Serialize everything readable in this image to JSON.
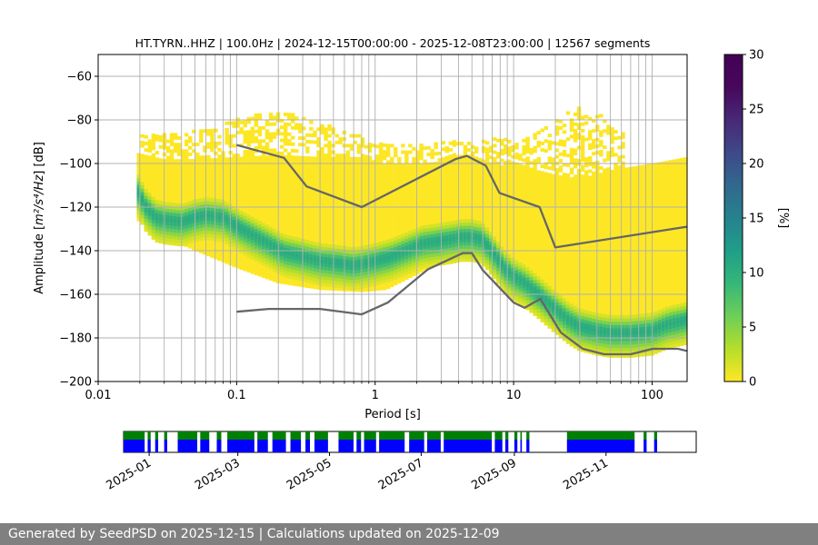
{
  "chart_data": [
    {
      "type": "heatmap",
      "title": "HT.TYRN..HHZ | 100.0Hz | 2024-12-15T00:00:00 - 2025-12-08T23:00:00 | 12567 segments",
      "xlabel": "Period [s]",
      "ylabel_prefix": "Amplitude [",
      "ylabel_math": "m²/s⁴/Hz",
      "ylabel_suffix": "] [dB]",
      "xscale": "log",
      "xlim": [
        0.01,
        179
      ],
      "ylim": [
        -200,
        -50
      ],
      "xticks": [
        0.01,
        0.1,
        1,
        10,
        100
      ],
      "xtick_labels": [
        "0.01",
        "0.1",
        "1",
        "10",
        "100"
      ],
      "yticks": [
        -200,
        -180,
        -160,
        -140,
        -120,
        -100,
        -80,
        -60
      ],
      "grid": true,
      "colormap": "viridis_r",
      "colorbar": {
        "label": "[%]",
        "range": [
          0,
          30
        ],
        "ticks": [
          0,
          5,
          10,
          15,
          20,
          25,
          30
        ]
      },
      "mode_curve": {
        "x": [
          0.019,
          0.022,
          0.026,
          0.03,
          0.04,
          0.05,
          0.06,
          0.08,
          0.1,
          0.13,
          0.17,
          0.22,
          0.3,
          0.4,
          0.55,
          0.7,
          0.85,
          1.0,
          1.3,
          1.7,
          2.2,
          2.8,
          3.5,
          4.2,
          5.0,
          5.8,
          6.5,
          7.5,
          8.5,
          10,
          12,
          15,
          20,
          25,
          30,
          40,
          50,
          70,
          100,
          130,
          179
        ],
        "y": [
          -112,
          -120,
          -125,
          -126,
          -127,
          -125,
          -124,
          -125,
          -129,
          -133,
          -137,
          -141,
          -143,
          -145,
          -146,
          -147,
          -146,
          -145,
          -143,
          -140,
          -137,
          -136,
          -135,
          -134,
          -134,
          -135,
          -138,
          -143,
          -148,
          -152,
          -155,
          -160,
          -167,
          -172,
          -175,
          -177,
          -178,
          -178,
          -177,
          -174,
          -172
        ]
      },
      "lower_pdf_edge": {
        "x": [
          0.019,
          0.03,
          0.05,
          0.1,
          0.2,
          0.4,
          0.8,
          1.2,
          2,
          3,
          4,
          5,
          6,
          8,
          10,
          15,
          20,
          30,
          50,
          100,
          179
        ],
        "y": [
          -126,
          -134,
          -140,
          -148,
          -155,
          -158,
          -159,
          -158,
          -151,
          -145,
          -141,
          -141,
          -146,
          -153,
          -158,
          -166,
          -174,
          -181,
          -182,
          -182,
          -180
        ]
      },
      "upper_pdf_edge": {
        "x": [
          0.019,
          0.03,
          0.05,
          0.1,
          0.2,
          0.4,
          0.8,
          1.2,
          2,
          3,
          4,
          5,
          6,
          8,
          10,
          15,
          20,
          30,
          50,
          100,
          179
        ],
        "y": [
          -95,
          -98,
          -98,
          -97,
          -96,
          -97,
          -97,
          -100,
          -100,
          -99,
          -96,
          -96,
          -98,
          -101,
          -99,
          -103,
          -105,
          -107,
          -103,
          -100,
          -97
        ]
      },
      "outlier_band": {
        "x": [
          0.019,
          0.04,
          0.07,
          0.1,
          0.15,
          0.2,
          0.35,
          0.5,
          0.7,
          0.9,
          1.2,
          2,
          3,
          5,
          8,
          12,
          15,
          20,
          25,
          30,
          40,
          50,
          60
        ],
        "y": [
          -88,
          -87,
          -84,
          -80,
          -78,
          -76,
          -81,
          -84,
          -87,
          -89,
          -92,
          -92,
          -91,
          -90,
          -89,
          -90,
          -86,
          -81,
          -77,
          -75,
          -77,
          -82,
          -87
        ]
      },
      "noise_model_high": {
        "x": [
          0.1,
          0.22,
          0.32,
          0.8,
          3.8,
          4.6,
          6.3,
          7.9,
          15.4,
          20,
          354.8
        ],
        "y": [
          -91.5,
          -97.4,
          -110.5,
          -120,
          -98,
          -96.5,
          -101,
          -113.5,
          -120,
          -138.5,
          -126
        ]
      },
      "noise_model_low": {
        "x": [
          0.1,
          0.17,
          0.4,
          0.8,
          1.24,
          2.4,
          4.3,
          5.0,
          6.0,
          10.0,
          12.0,
          15.6,
          21.9,
          31.6,
          45,
          70,
          101,
          154,
          179
        ],
        "y": [
          -168,
          -166.7,
          -166.7,
          -169.2,
          -163.7,
          -148.6,
          -141.1,
          -141.1,
          -149,
          -163.8,
          -166.2,
          -162.1,
          -177.5,
          -185,
          -187.5,
          -187.5,
          -185,
          -185,
          -186
        ]
      }
    },
    {
      "type": "timeline",
      "x_range": [
        "2024-12-15",
        "2025-12-31"
      ],
      "tick_labels": [
        "2025-01",
        "2025-03",
        "2025-05",
        "2025-07",
        "2025-09",
        "2025-11"
      ],
      "tick_dates": [
        "2025-01-01",
        "2025-03-01",
        "2025-05-01",
        "2025-07-01",
        "2025-09-01",
        "2025-11-01"
      ],
      "colors": {
        "available": "#0000ff",
        "used": "#008000"
      },
      "segments": [
        [
          "2024-12-15",
          "2024-12-29"
        ],
        [
          "2024-12-31",
          "2025-01-02"
        ],
        [
          "2025-01-05",
          "2025-01-07"
        ],
        [
          "2025-01-11",
          "2025-01-13"
        ],
        [
          "2025-01-20",
          "2025-02-02"
        ],
        [
          "2025-02-04",
          "2025-02-10"
        ],
        [
          "2025-02-15",
          "2025-02-18"
        ],
        [
          "2025-02-22",
          "2025-03-12"
        ],
        [
          "2025-03-14",
          "2025-03-21"
        ],
        [
          "2025-03-24",
          "2025-04-02"
        ],
        [
          "2025-04-05",
          "2025-04-12"
        ],
        [
          "2025-04-15",
          "2025-04-18"
        ],
        [
          "2025-04-21",
          "2025-04-30"
        ],
        [
          "2025-05-07",
          "2025-05-17"
        ],
        [
          "2025-05-19",
          "2025-05-22"
        ],
        [
          "2025-05-24",
          "2025-06-01"
        ],
        [
          "2025-06-03",
          "2025-06-20"
        ],
        [
          "2025-06-23",
          "2025-07-03"
        ],
        [
          "2025-07-05",
          "2025-07-14"
        ],
        [
          "2025-07-16",
          "2025-08-17"
        ],
        [
          "2025-08-19",
          "2025-08-24"
        ],
        [
          "2025-08-26",
          "2025-08-28"
        ],
        [
          "2025-09-01",
          "2025-09-03"
        ],
        [
          "2025-09-05",
          "2025-09-06"
        ],
        [
          "2025-09-09",
          "2025-09-11"
        ],
        [
          "2025-10-06",
          "2025-11-20"
        ],
        [
          "2025-11-26",
          "2025-11-28"
        ],
        [
          "2025-12-03",
          "2025-12-05"
        ]
      ]
    }
  ],
  "footer": {
    "text": "Generated by SeedPSD on 2025-12-15 | Calculations updated on 2025-12-09"
  }
}
